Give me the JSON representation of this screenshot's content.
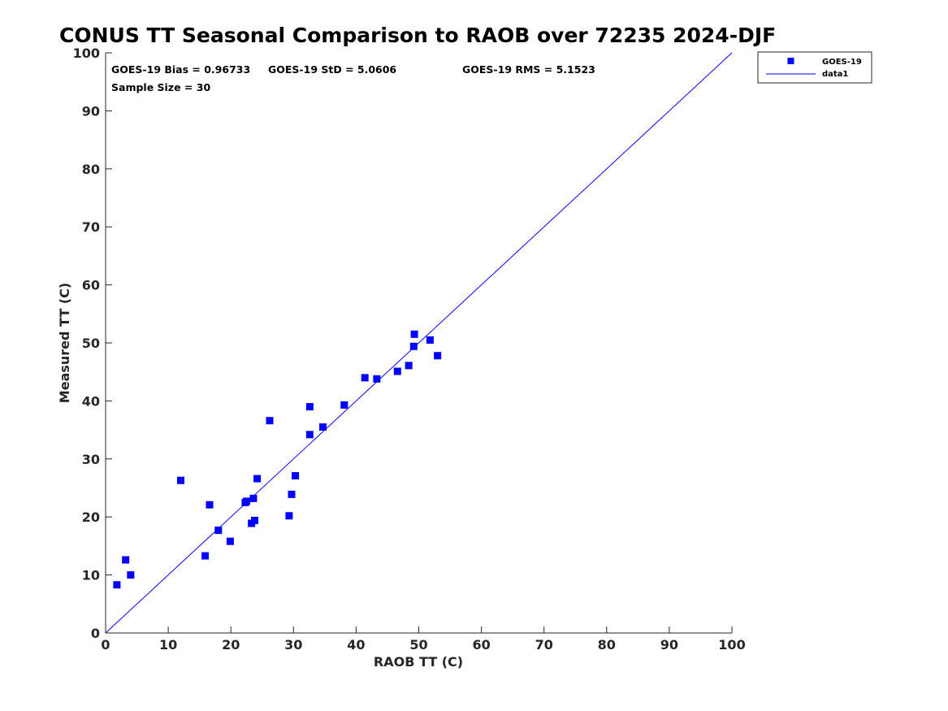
{
  "chart_data": {
    "type": "scatter",
    "title": "CONUS TT Seasonal Comparison to RAOB over 72235 2024-DJF",
    "xlabel": "RAOB TT (C)",
    "ylabel": "Measured TT (C)",
    "xlim": [
      0,
      100
    ],
    "ylim": [
      0,
      100
    ],
    "xticks": [
      0,
      10,
      20,
      30,
      40,
      50,
      60,
      70,
      80,
      90,
      100
    ],
    "yticks": [
      0,
      10,
      20,
      30,
      40,
      50,
      60,
      70,
      80,
      90,
      100
    ],
    "grid": false,
    "legend_position": "top-right-outside",
    "stats": {
      "bias": "GOES-19 Bias = 0.96733",
      "std": "GOES-19 StD = 5.0606",
      "rms": "GOES-19 RMS = 5.1523",
      "sample": "Sample Size = 30"
    },
    "series": [
      {
        "name": "GOES-19",
        "kind": "markers",
        "color": "#0000ff",
        "marker": "square",
        "points": [
          [
            1.8,
            8.3
          ],
          [
            3.2,
            12.6
          ],
          [
            4.0,
            10.0
          ],
          [
            12.0,
            26.3
          ],
          [
            15.9,
            13.3
          ],
          [
            16.6,
            22.1
          ],
          [
            18.0,
            17.7
          ],
          [
            19.9,
            15.8
          ],
          [
            22.3,
            22.5
          ],
          [
            22.5,
            22.7
          ],
          [
            23.3,
            18.9
          ],
          [
            23.6,
            23.2
          ],
          [
            23.8,
            19.4
          ],
          [
            24.2,
            26.6
          ],
          [
            26.2,
            36.6
          ],
          [
            29.3,
            20.2
          ],
          [
            29.7,
            23.9
          ],
          [
            30.3,
            27.1
          ],
          [
            32.6,
            34.2
          ],
          [
            32.6,
            39.0
          ],
          [
            34.7,
            35.5
          ],
          [
            38.1,
            39.3
          ],
          [
            41.4,
            44.0
          ],
          [
            43.3,
            43.8
          ],
          [
            46.6,
            45.1
          ],
          [
            48.4,
            46.1
          ],
          [
            49.2,
            49.4
          ],
          [
            49.3,
            51.5
          ],
          [
            51.8,
            50.5
          ],
          [
            53.0,
            47.8
          ]
        ]
      },
      {
        "name": "data1",
        "kind": "line",
        "color": "#0000ff",
        "points": [
          [
            0,
            0
          ],
          [
            100,
            100
          ]
        ]
      }
    ]
  }
}
